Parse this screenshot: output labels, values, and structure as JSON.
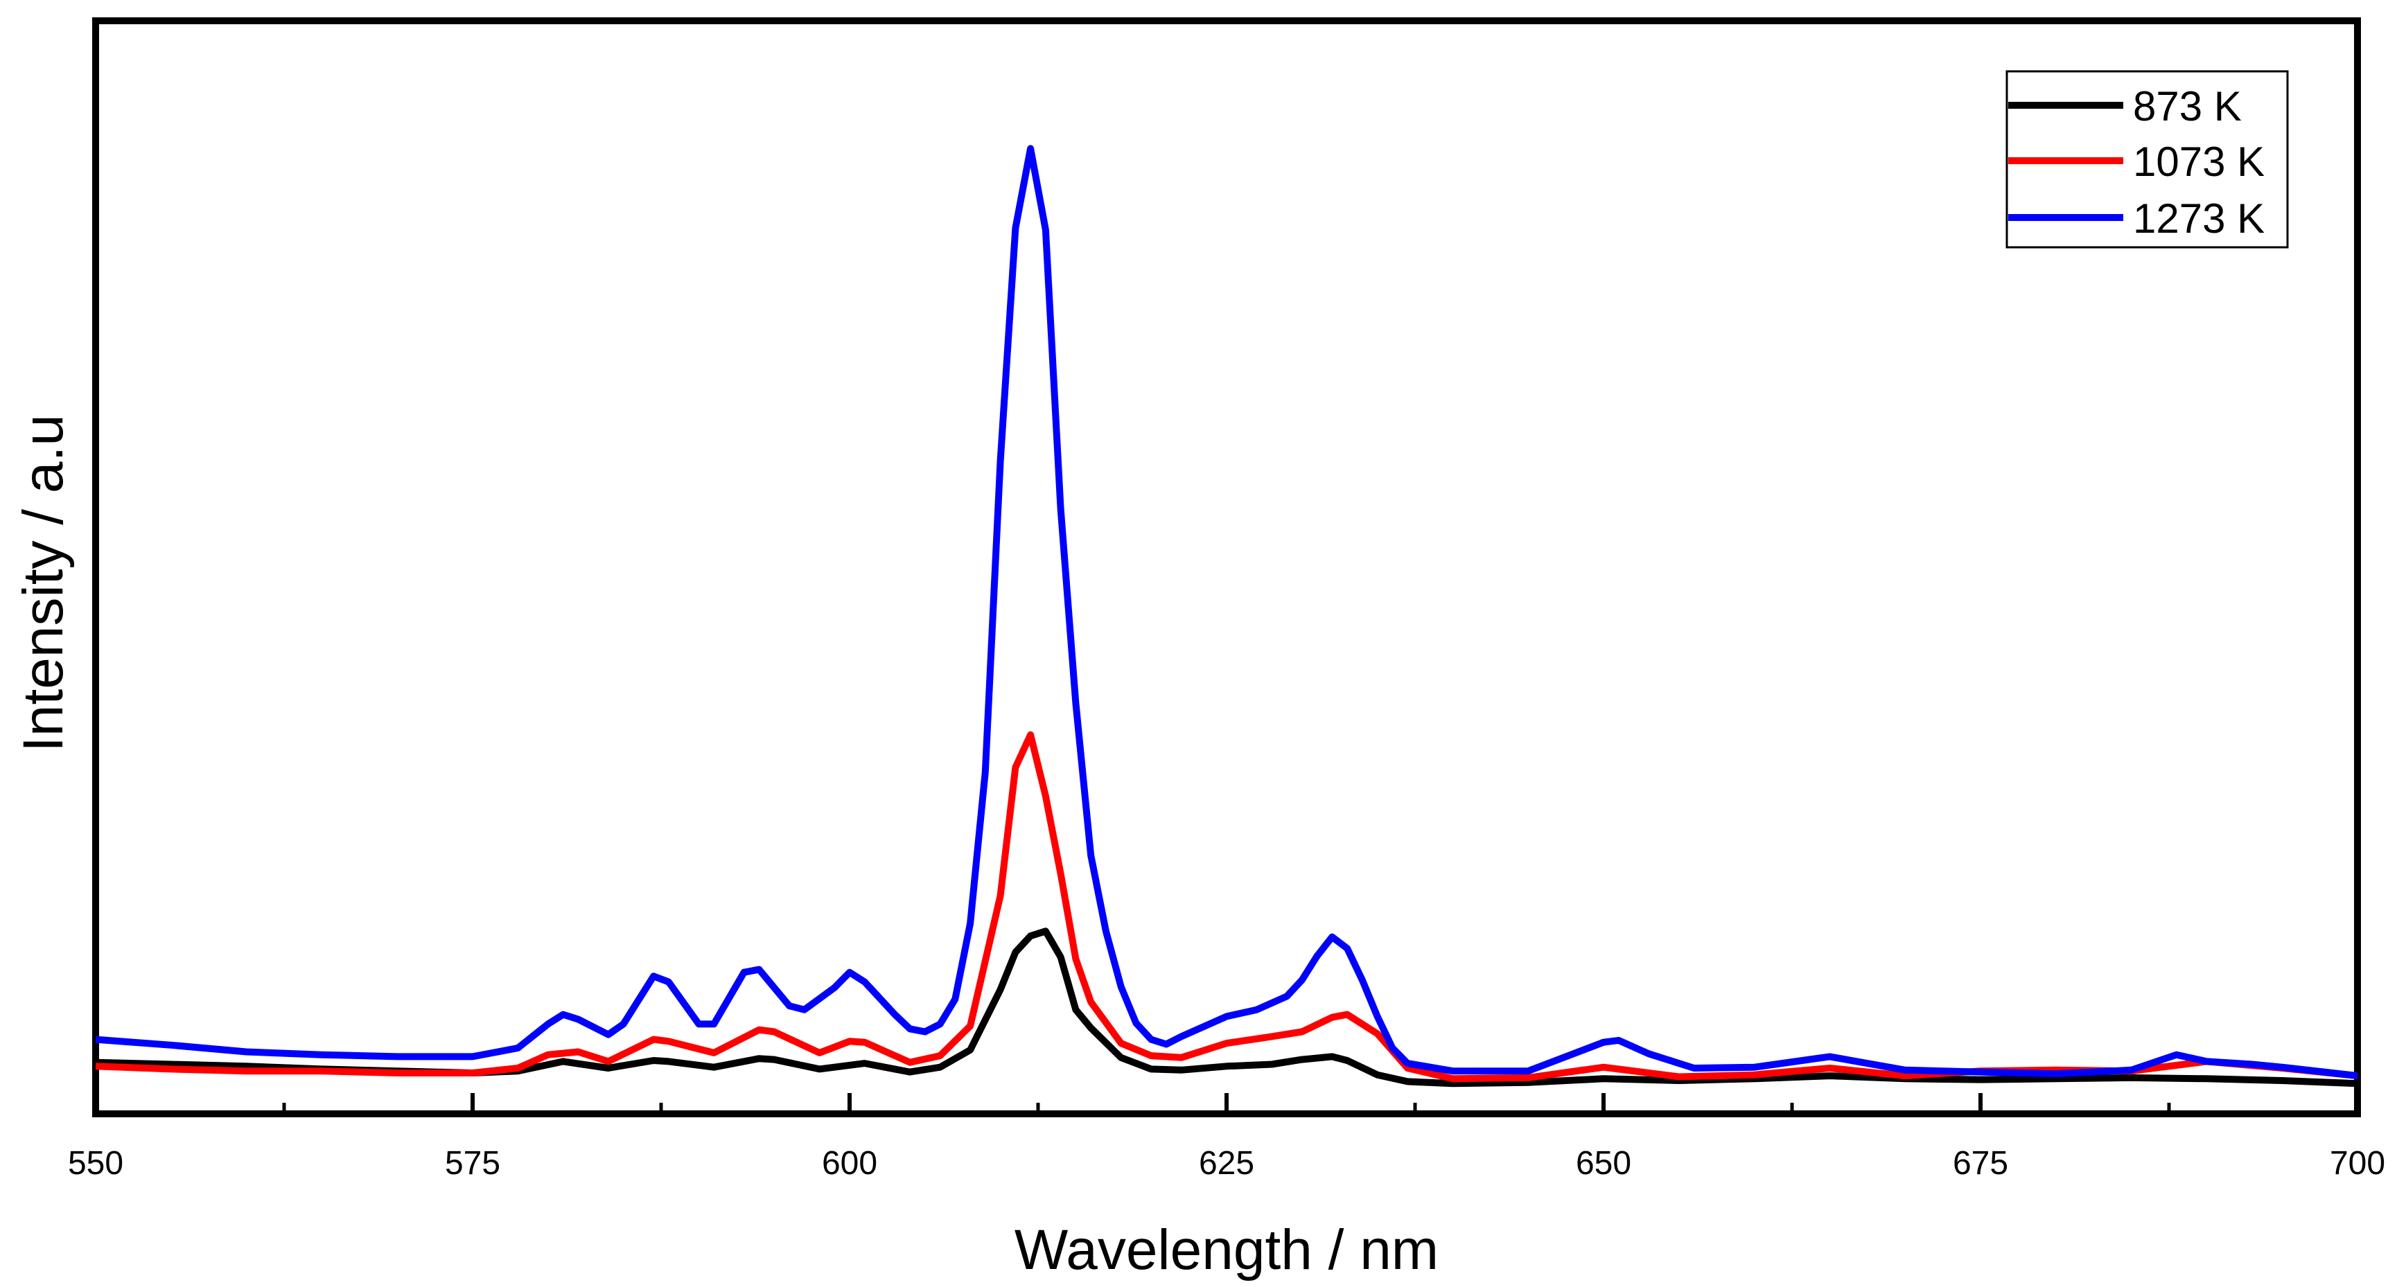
{
  "chart_data": {
    "type": "line",
    "xlabel": "Wavelength / nm",
    "ylabel": "Intensity / a.u",
    "xlim": [
      550,
      700
    ],
    "ylim": [
      0,
      100
    ],
    "xticks": [
      550,
      575,
      600,
      625,
      650,
      675,
      700
    ],
    "xtick_labels": [
      "550",
      "575",
      "600",
      "625",
      "650",
      "675",
      "700"
    ],
    "grid": false,
    "legend_position": "top-right",
    "series": [
      {
        "name": "873 K",
        "color": "#000000",
        "x": [
          550,
          555,
          560,
          565,
          570,
          575,
          578,
          581,
          584,
          587,
          588,
          591,
          594,
          595,
          598,
          601,
          604,
          606,
          608,
          610,
          611,
          612,
          613,
          614,
          615,
          616,
          618,
          620,
          622,
          625,
          628,
          630,
          632,
          633,
          635,
          637,
          640,
          645,
          650,
          655,
          660,
          665,
          670,
          675,
          680,
          685,
          690,
          695,
          700
        ],
        "y": [
          3.2,
          3.0,
          2.8,
          2.5,
          2.3,
          2.1,
          2.3,
          3.3,
          2.6,
          3.4,
          3.3,
          2.7,
          3.6,
          3.5,
          2.5,
          3.1,
          2.2,
          2.7,
          4.5,
          10.8,
          14.7,
          16.4,
          16.9,
          14.2,
          8.7,
          6.8,
          3.7,
          2.5,
          2.4,
          2.8,
          3.0,
          3.5,
          3.8,
          3.4,
          1.9,
          1.2,
          1.0,
          1.1,
          1.5,
          1.3,
          1.5,
          1.8,
          1.5,
          1.4,
          1.5,
          1.6,
          1.5,
          1.3,
          1.0
        ]
      },
      {
        "name": "1073 K",
        "color": "#ff0000",
        "x": [
          550,
          555,
          560,
          565,
          570,
          575,
          578,
          580,
          582,
          584,
          587,
          588,
          591,
          594,
          595,
          598,
          600,
          601,
          604,
          606,
          608,
          610,
          611,
          612,
          613,
          614,
          615,
          616,
          618,
          620,
          622,
          625,
          628,
          630,
          632,
          633,
          635,
          637,
          640,
          645,
          650,
          655,
          660,
          665,
          670,
          675,
          680,
          685,
          690,
          695,
          700
        ],
        "y": [
          2.8,
          2.5,
          2.3,
          2.3,
          2.1,
          2.1,
          2.6,
          4.0,
          4.3,
          3.3,
          5.6,
          5.4,
          4.2,
          6.6,
          6.4,
          4.2,
          5.4,
          5.3,
          3.2,
          3.9,
          7.0,
          20.6,
          34.0,
          37.4,
          31.0,
          22.9,
          14.0,
          9.5,
          5.2,
          3.9,
          3.7,
          5.2,
          5.9,
          6.4,
          7.9,
          8.2,
          6.2,
          2.6,
          1.5,
          1.6,
          2.7,
          1.7,
          1.9,
          2.6,
          1.8,
          2.3,
          2.4,
          2.3,
          3.3,
          2.6,
          1.8
        ]
      },
      {
        "name": "1273 K",
        "color": "#0000ff",
        "x": [
          550,
          555,
          560,
          565,
          570,
          575,
          578,
          580,
          581,
          582,
          584,
          585,
          587,
          588,
          590,
          591,
          593,
          594,
          596,
          597,
          599,
          600,
          601,
          603,
          604,
          605,
          606,
          607,
          608,
          609,
          610,
          611,
          612,
          613,
          614,
          615,
          616,
          617,
          618,
          619,
          620,
          621,
          622,
          625,
          627,
          629,
          630,
          631,
          632,
          633,
          634,
          635,
          636,
          637,
          640,
          645,
          650,
          651,
          653,
          656,
          660,
          665,
          670,
          675,
          680,
          685,
          688,
          690,
          693,
          695,
          700
        ],
        "y": [
          5.6,
          5.0,
          4.3,
          4.0,
          3.8,
          3.8,
          4.7,
          7.2,
          8.2,
          7.7,
          6.1,
          7.2,
          12.2,
          11.6,
          7.2,
          7.2,
          12.6,
          12.9,
          9.1,
          8.7,
          11.0,
          12.6,
          11.6,
          8.2,
          6.7,
          6.4,
          7.2,
          9.8,
          17.7,
          33.5,
          66.0,
          90.3,
          98.6,
          90.1,
          61.0,
          40.7,
          24.8,
          16.9,
          11.1,
          7.3,
          5.6,
          5.1,
          5.9,
          8.0,
          8.7,
          10.1,
          11.8,
          14.3,
          16.3,
          15.1,
          11.8,
          8.0,
          4.7,
          3.1,
          2.3,
          2.3,
          5.3,
          5.5,
          4.1,
          2.6,
          2.7,
          3.8,
          2.4,
          2.2,
          2.0,
          2.4,
          4.0,
          3.3,
          3.0,
          2.7,
          1.8
        ]
      }
    ]
  }
}
